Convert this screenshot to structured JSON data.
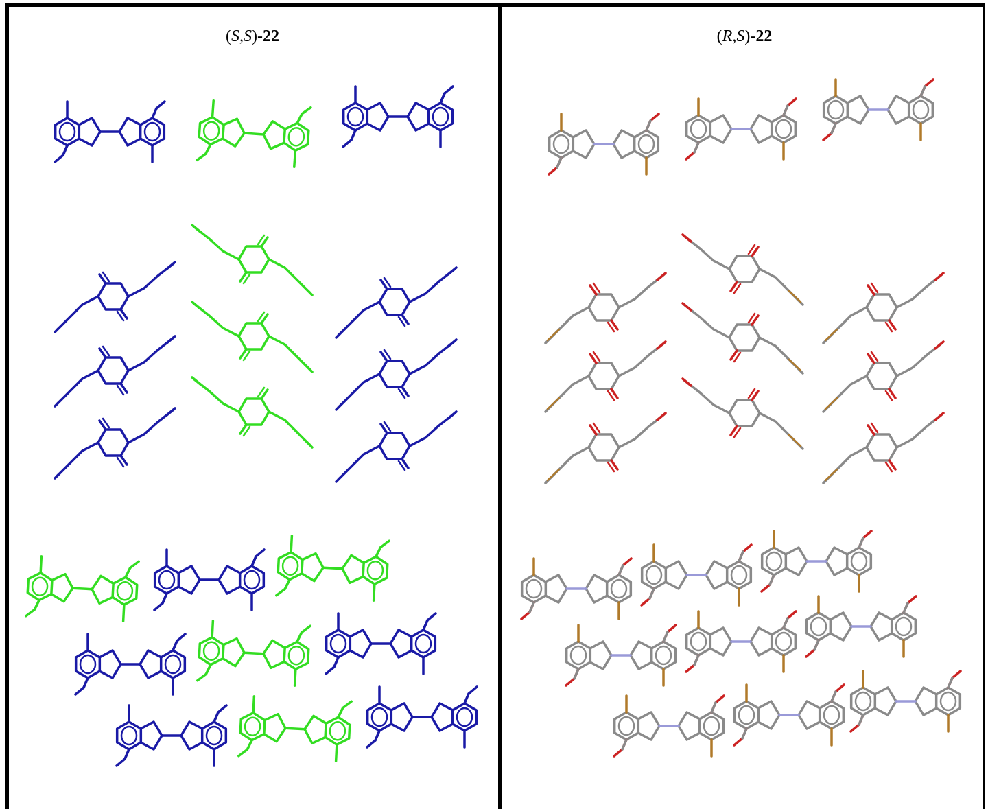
{
  "panels": [
    {
      "title": [
        {
          "text": "(",
          "style": "normal"
        },
        {
          "text": "S,S",
          "style": "italic"
        },
        {
          "text": ")-",
          "style": "normal"
        },
        {
          "text": "22",
          "style": "bold"
        }
      ]
    },
    {
      "title": [
        {
          "text": "(",
          "style": "normal"
        },
        {
          "text": "R,S",
          "style": "italic"
        },
        {
          "text": ")-",
          "style": "normal"
        },
        {
          "text": "22",
          "style": "bold"
        }
      ]
    }
  ]
}
